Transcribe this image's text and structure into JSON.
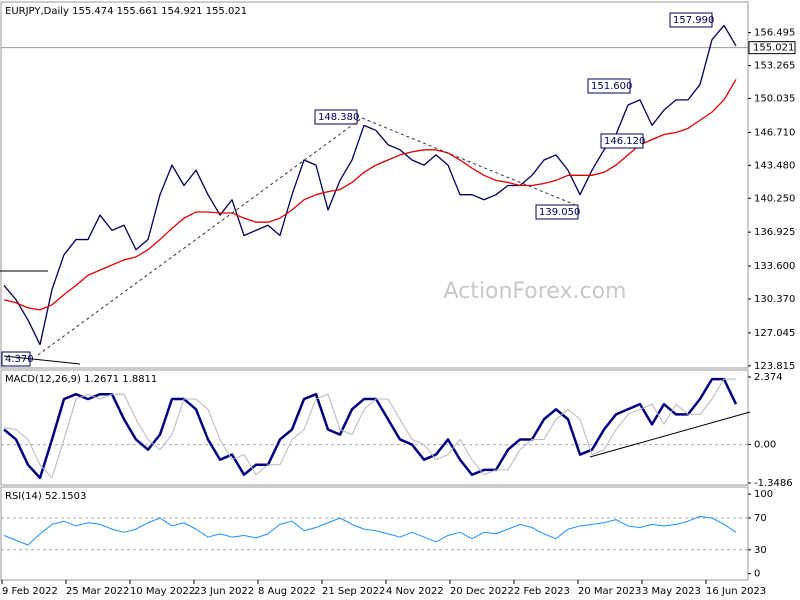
{
  "dates": [
    "9 Feb 2022",
    "25 Mar 2022",
    "10 May 2022",
    "23 Jun 2022",
    "8 Aug 2022",
    "21 Sep 2022",
    "4 Nov 2022",
    "20 Dec 2022",
    "2 Feb 2023",
    "20 Mar 2023",
    "3 May 2023",
    "16 Jun 2023"
  ],
  "watermark": "ActionForex.com",
  "chart_data": [
    {
      "type": "line",
      "title": "EURJPY,Daily  155.474 155.661 154.921 155.021",
      "ylim": [
        123.6,
        159.5
      ],
      "yticks": [
        156.495,
        153.265,
        150.035,
        {
          "value": 146.71,
          "label": "146.710"
        },
        {
          "value": 143.48,
          "label": "143.480"
        },
        {
          "value": 140.25,
          "label": "140.250"
        },
        136.925,
        {
          "value": 133.6,
          "label": "133.600"
        },
        {
          "value": 130.37,
          "label": "130.370"
        },
        127.045,
        123.815
      ],
      "last_price": 155.021,
      "annotations": [
        "157.990",
        "151.600",
        "146.120",
        "148.380",
        "139.050",
        "4.370"
      ],
      "series": [
        {
          "color": "#00005a",
          "values": [
            131.7,
            130.3,
            128.3,
            125.9,
            131.3,
            134.7,
            136.2,
            136.2,
            138.6,
            137.1,
            137.6,
            135.2,
            136.2,
            140.6,
            143.5,
            141.5,
            143.0,
            140.6,
            138.6,
            140.1,
            136.6,
            137.1,
            137.6,
            136.6,
            140.6,
            144.0,
            143.5,
            139.1,
            142.0,
            144.0,
            147.4,
            146.9,
            145.5,
            145.0,
            144.0,
            143.5,
            144.5,
            143.5,
            140.6,
            140.6,
            140.1,
            140.6,
            141.5,
            141.5,
            142.5,
            144.0,
            144.5,
            143.0,
            140.6,
            143.0,
            145.0,
            146.5,
            149.4,
            149.9,
            147.4,
            148.9,
            149.9,
            149.9,
            151.4,
            155.8,
            157.2,
            155.2
          ]
        },
        {
          "color": "#e00000",
          "values": [
            130.3,
            130.0,
            129.5,
            129.3,
            129.8,
            130.8,
            131.7,
            132.7,
            133.2,
            133.7,
            134.2,
            134.5,
            135.2,
            136.2,
            137.3,
            138.3,
            138.9,
            138.9,
            138.8,
            138.8,
            138.3,
            137.9,
            137.9,
            138.3,
            139.1,
            140.1,
            140.6,
            140.9,
            141.1,
            141.8,
            142.8,
            143.5,
            144.0,
            144.5,
            144.8,
            145.0,
            145.0,
            144.7,
            144.0,
            143.2,
            142.5,
            142.0,
            141.8,
            141.5,
            141.5,
            141.7,
            142.0,
            142.5,
            142.5,
            142.5,
            142.8,
            143.5,
            144.5,
            145.5,
            146.0,
            146.5,
            146.7,
            147.1,
            147.9,
            148.7,
            149.9,
            151.9
          ]
        }
      ]
    },
    {
      "type": "line",
      "title": "MACD(12,26,9) 1.2671 1.8811",
      "ylim": [
        -1.42,
        2.62
      ],
      "yticks": [
        2.374,
        {
          "value": 0,
          "label": "0.00"
        },
        -1.3486
      ],
      "dashed_levels": [
        0
      ],
      "series": [
        {
          "color": "#00007f",
          "width": 2.5,
          "values": [
            0.53,
            0.18,
            -0.71,
            -1.17,
            0.18,
            1.6,
            1.77,
            1.6,
            1.77,
            1.77,
            0.89,
            0.18,
            -0.18,
            0.35,
            1.6,
            1.6,
            1.24,
            0.18,
            -0.53,
            -0.35,
            -1.06,
            -0.71,
            -0.71,
            0.18,
            0.53,
            1.6,
            1.77,
            0.53,
            0.35,
            1.24,
            1.6,
            1.6,
            0.89,
            0.18,
            0,
            -0.53,
            -0.35,
            0.18,
            -0.53,
            -1.06,
            -0.89,
            -0.89,
            -0.18,
            0.18,
            0.18,
            0.89,
            1.24,
            0.89,
            -0.35,
            -0.18,
            0.53,
            1.06,
            1.24,
            1.42,
            0.71,
            1.42,
            1.06,
            1.06,
            1.6,
            2.3,
            2.3,
            1.42
          ]
        },
        {
          "color": "#b8b8b8",
          "width": 1,
          "values": [
            0.6,
            0.53,
            0.18,
            -0.71,
            -1.17,
            0.18,
            1.6,
            1.77,
            1.6,
            1.77,
            1.77,
            0.89,
            0.18,
            -0.18,
            0.35,
            1.6,
            1.6,
            1.24,
            0.18,
            -0.53,
            -0.35,
            -1.06,
            -0.71,
            -0.71,
            0.18,
            0.53,
            1.6,
            1.77,
            0.53,
            0.35,
            1.24,
            1.6,
            1.6,
            0.89,
            0.18,
            0,
            -0.53,
            -0.35,
            0.18,
            -0.53,
            -1.06,
            -0.89,
            -0.89,
            -0.18,
            0.18,
            0.18,
            0.89,
            1.24,
            0.89,
            -0.35,
            -0.18,
            0.53,
            1.06,
            1.24,
            1.42,
            0.71,
            1.42,
            1.06,
            1.06,
            1.6,
            2.3,
            2.3
          ]
        }
      ]
    },
    {
      "type": "line",
      "title": "RSI(14) 52.1503",
      "ylim": [
        -8,
        109
      ],
      "yticks": [
        100,
        70,
        30,
        0
      ],
      "dashed_levels": [
        70,
        30
      ],
      "series": [
        {
          "color": "#1e90ff",
          "width": 1,
          "values": [
            48,
            42,
            36,
            50,
            62,
            66,
            60,
            64,
            62,
            56,
            52,
            56,
            64,
            70,
            60,
            64,
            56,
            46,
            50,
            46,
            48,
            45,
            50,
            62,
            66,
            54,
            58,
            64,
            70,
            62,
            56,
            54,
            50,
            46,
            52,
            46,
            40,
            48,
            52,
            44,
            52,
            50,
            56,
            62,
            58,
            50,
            44,
            56,
            60,
            62,
            64,
            68,
            60,
            58,
            62,
            60,
            62,
            66,
            72,
            70,
            62,
            52
          ]
        }
      ]
    }
  ]
}
